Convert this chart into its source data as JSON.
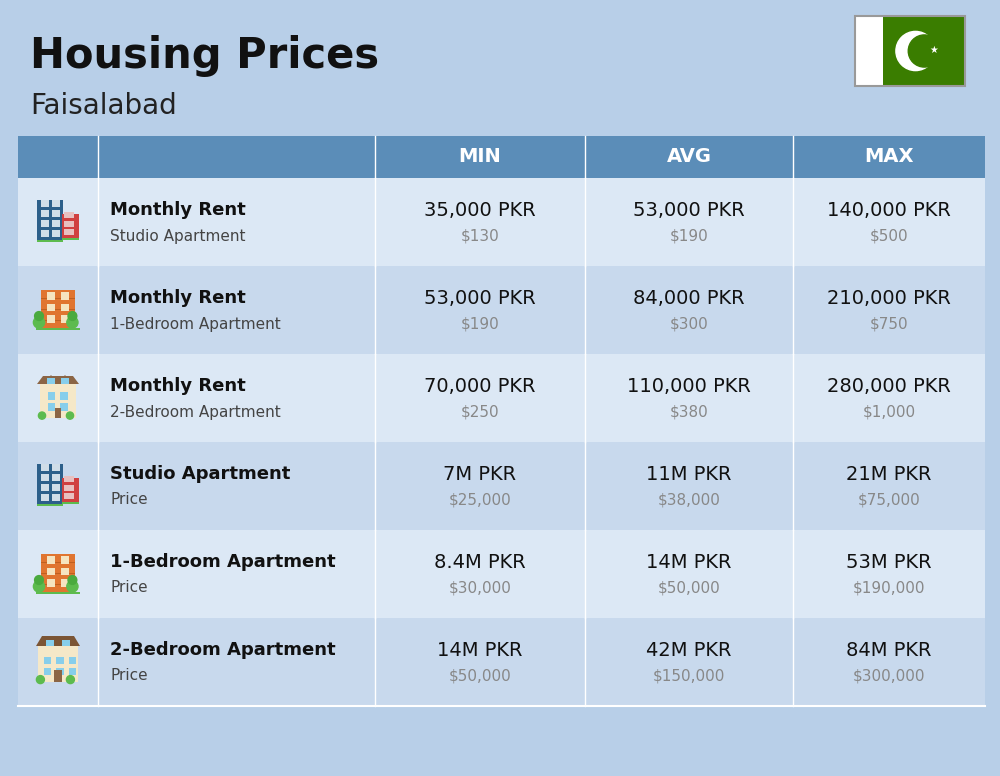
{
  "title": "Housing Prices",
  "subtitle": "Faisalabad",
  "bg_color": "#b8cfe8",
  "header_bg": "#5b8db8",
  "header_text_color": "#ffffff",
  "row_colors": [
    "#dce8f5",
    "#c8d9ed"
  ],
  "col_headers": [
    "MIN",
    "AVG",
    "MAX"
  ],
  "rows": [
    {
      "bold_label": "Monthly Rent",
      "sub_label": "Studio Apartment",
      "emoji_type": "studio_blue",
      "min_pkr": "35,000 PKR",
      "min_usd": "$130",
      "avg_pkr": "53,000 PKR",
      "avg_usd": "$190",
      "max_pkr": "140,000 PKR",
      "max_usd": "$500"
    },
    {
      "bold_label": "Monthly Rent",
      "sub_label": "1-Bedroom Apartment",
      "emoji_type": "one_bed_orange",
      "min_pkr": "53,000 PKR",
      "min_usd": "$190",
      "avg_pkr": "84,000 PKR",
      "avg_usd": "$300",
      "max_pkr": "210,000 PKR",
      "max_usd": "$750"
    },
    {
      "bold_label": "Monthly Rent",
      "sub_label": "2-Bedroom Apartment",
      "emoji_type": "two_bed_beige",
      "min_pkr": "70,000 PKR",
      "min_usd": "$250",
      "avg_pkr": "110,000 PKR",
      "avg_usd": "$380",
      "max_pkr": "280,000 PKR",
      "max_usd": "$1,000"
    },
    {
      "bold_label": "Studio Apartment",
      "sub_label": "Price",
      "emoji_type": "studio_blue",
      "min_pkr": "7M PKR",
      "min_usd": "$25,000",
      "avg_pkr": "11M PKR",
      "avg_usd": "$38,000",
      "max_pkr": "21M PKR",
      "max_usd": "$75,000"
    },
    {
      "bold_label": "1-Bedroom Apartment",
      "sub_label": "Price",
      "emoji_type": "one_bed_orange",
      "min_pkr": "8.4M PKR",
      "min_usd": "$30,000",
      "avg_pkr": "14M PKR",
      "avg_usd": "$50,000",
      "max_pkr": "53M PKR",
      "max_usd": "$190,000"
    },
    {
      "bold_label": "2-Bedroom Apartment",
      "sub_label": "Price",
      "emoji_type": "two_bed_brown",
      "min_pkr": "14M PKR",
      "min_usd": "$50,000",
      "avg_pkr": "42M PKR",
      "avg_usd": "$150,000",
      "max_pkr": "84M PKR",
      "max_usd": "$300,000"
    }
  ],
  "figure_width": 10.0,
  "figure_height": 7.76,
  "dpi": 100
}
